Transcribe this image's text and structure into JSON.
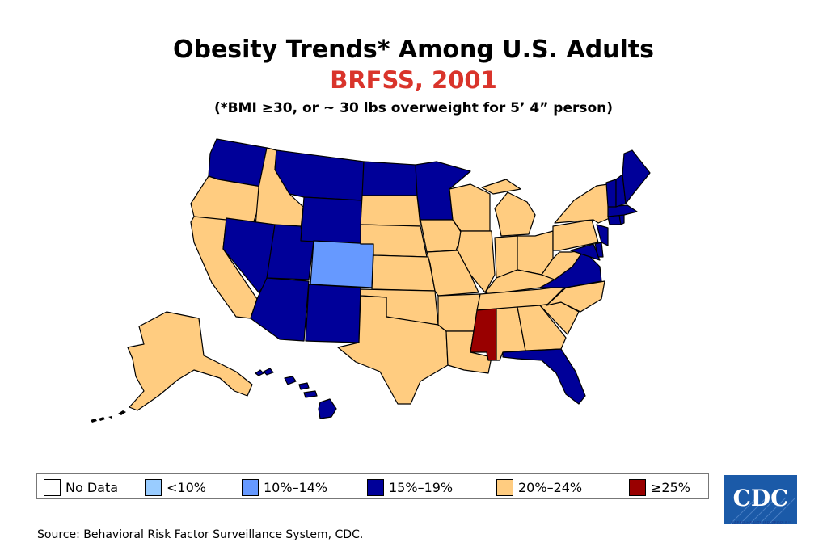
{
  "title": "Obesity Trends* Among U.S. Adults",
  "subtitle": "BRFSS, 2001",
  "footnote": "(*BMI ≥30, or ~ 30 lbs overweight for 5’ 4” person)",
  "colors": {
    "no_data": "#ffffff",
    "lt10": "#99ccff",
    "c10_14": "#6699ff",
    "c15_19": "#000099",
    "c20_24": "#ffcc80",
    "ge25": "#990000",
    "subtitle": "#d9342b"
  },
  "legend": [
    {
      "label": "No Data",
      "color": "#ffffff"
    },
    {
      "label": "<10%",
      "color": "#99ccff"
    },
    {
      "label": "10%–14%",
      "color": "#6699ff"
    },
    {
      "label": "15%–19%",
      "color": "#000099"
    },
    {
      "label": "20%–24%",
      "color": "#ffcc80"
    },
    {
      "label": "≥25%",
      "color": "#990000"
    }
  ],
  "state_categories": {
    "Colorado": "10%–14%",
    "Mississippi": "≥25%",
    "15%–19%": [
      "Washington",
      "Montana",
      "North Dakota",
      "Minnesota",
      "Wyoming",
      "Nevada",
      "Utah",
      "Arizona",
      "New Mexico",
      "Virginia",
      "Florida",
      "Hawaii",
      "Vermont",
      "New Hampshire",
      "Maine",
      "Massachusetts",
      "Connecticut",
      "Rhode Island",
      "New Jersey",
      "Maryland",
      "Delaware"
    ],
    "20%–24%": [
      "Oregon",
      "Idaho",
      "California",
      "South Dakota",
      "Nebraska",
      "Kansas",
      "Oklahoma",
      "Texas",
      "Iowa",
      "Missouri",
      "Arkansas",
      "Louisiana",
      "Wisconsin",
      "Illinois",
      "Michigan",
      "Indiana",
      "Ohio",
      "Kentucky",
      "Tennessee",
      "Alabama",
      "Georgia",
      "South Carolina",
      "North Carolina",
      "West Virginia",
      "Pennsylvania",
      "New York",
      "Alaska"
    ]
  },
  "source": "Source: Behavioral Risk Factor Surveillance System, CDC.",
  "logo": {
    "text": "CDC",
    "tagline": "SAFER·HEALTHIER·PEOPLE™"
  }
}
